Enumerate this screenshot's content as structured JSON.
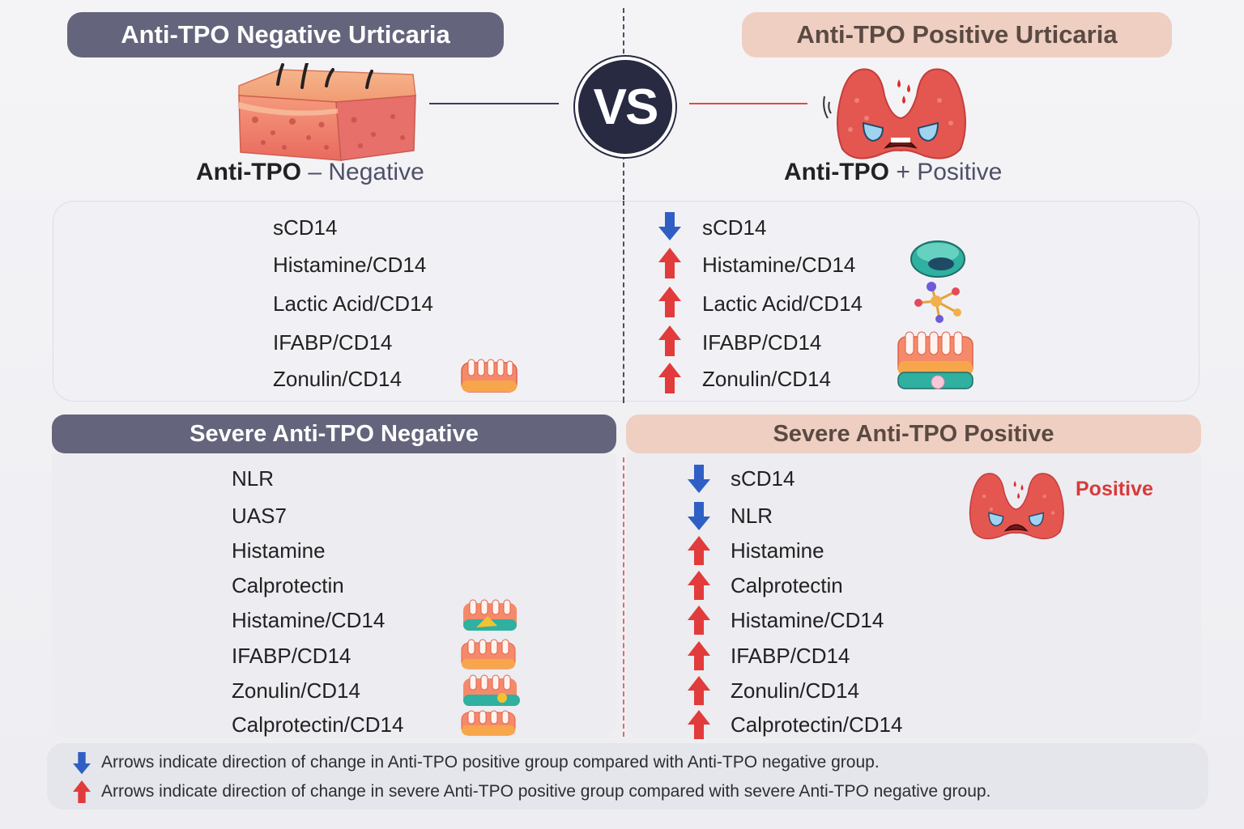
{
  "header": {
    "negative_title": "Anti-TPO Negative Urticaria",
    "positive_title": "Anti-TPO Positive Urticaria",
    "vs": "VS",
    "negative_label_bold": "Anti-TPO",
    "negative_label_sign": "–",
    "negative_label_text": "Negative",
    "positive_label_bold": "Anti-TPO",
    "positive_label_sign": "+",
    "positive_label_text": "Positive"
  },
  "top_negative": {
    "items": [
      "sCD14",
      "Histamine/CD14",
      "Lactic Acid/CD14",
      "IFABP/CD14",
      "Zonulin/CD14"
    ]
  },
  "top_positive": {
    "items": [
      {
        "label": "sCD14",
        "direction": "down"
      },
      {
        "label": "Histamine/CD14",
        "direction": "up"
      },
      {
        "label": "Lactic Acid/CD14",
        "direction": "up"
      },
      {
        "label": "IFABP/CD14",
        "direction": "up"
      },
      {
        "label": "Zonulin/CD14",
        "direction": "up"
      }
    ]
  },
  "severe_negative": {
    "title": "Severe Anti-TPO Negative",
    "items": [
      "NLR",
      "UAS7",
      "Histamine",
      "Calprotectin",
      "Histamine/CD14",
      "IFABP/CD14",
      "Zonulin/CD14",
      "Calprotectin/CD14"
    ]
  },
  "severe_positive": {
    "title": "Severe Anti-TPO Positive",
    "badge": "Positive",
    "items": [
      {
        "label": "sCD14",
        "direction": "down"
      },
      {
        "label": "NLR",
        "direction": "down"
      },
      {
        "label": "Histamine",
        "direction": "up"
      },
      {
        "label": "Calprotectin",
        "direction": "up"
      },
      {
        "label": "Histamine/CD14",
        "direction": "up"
      },
      {
        "label": "IFABP/CD14",
        "direction": "up"
      },
      {
        "label": "Zonulin/CD14",
        "direction": "up"
      },
      {
        "label": "Calprotectin/CD14",
        "direction": "up"
      }
    ]
  },
  "legend": {
    "blue_text": "Arrows indicate direction of change in Anti-TPO positive group compared with Anti-TPO negative group.",
    "red_text": "Arrows indicate direction of change in severe Anti-TPO positive group compared with severe Anti-TPO negative group."
  },
  "colors": {
    "arrow_down": "#2f5fc4",
    "arrow_up": "#e23b3b",
    "neg_pill": "#64657c",
    "pos_pill": "#efcfc2",
    "vs_circle": "#272a41",
    "badge_red": "#d83a3a"
  }
}
